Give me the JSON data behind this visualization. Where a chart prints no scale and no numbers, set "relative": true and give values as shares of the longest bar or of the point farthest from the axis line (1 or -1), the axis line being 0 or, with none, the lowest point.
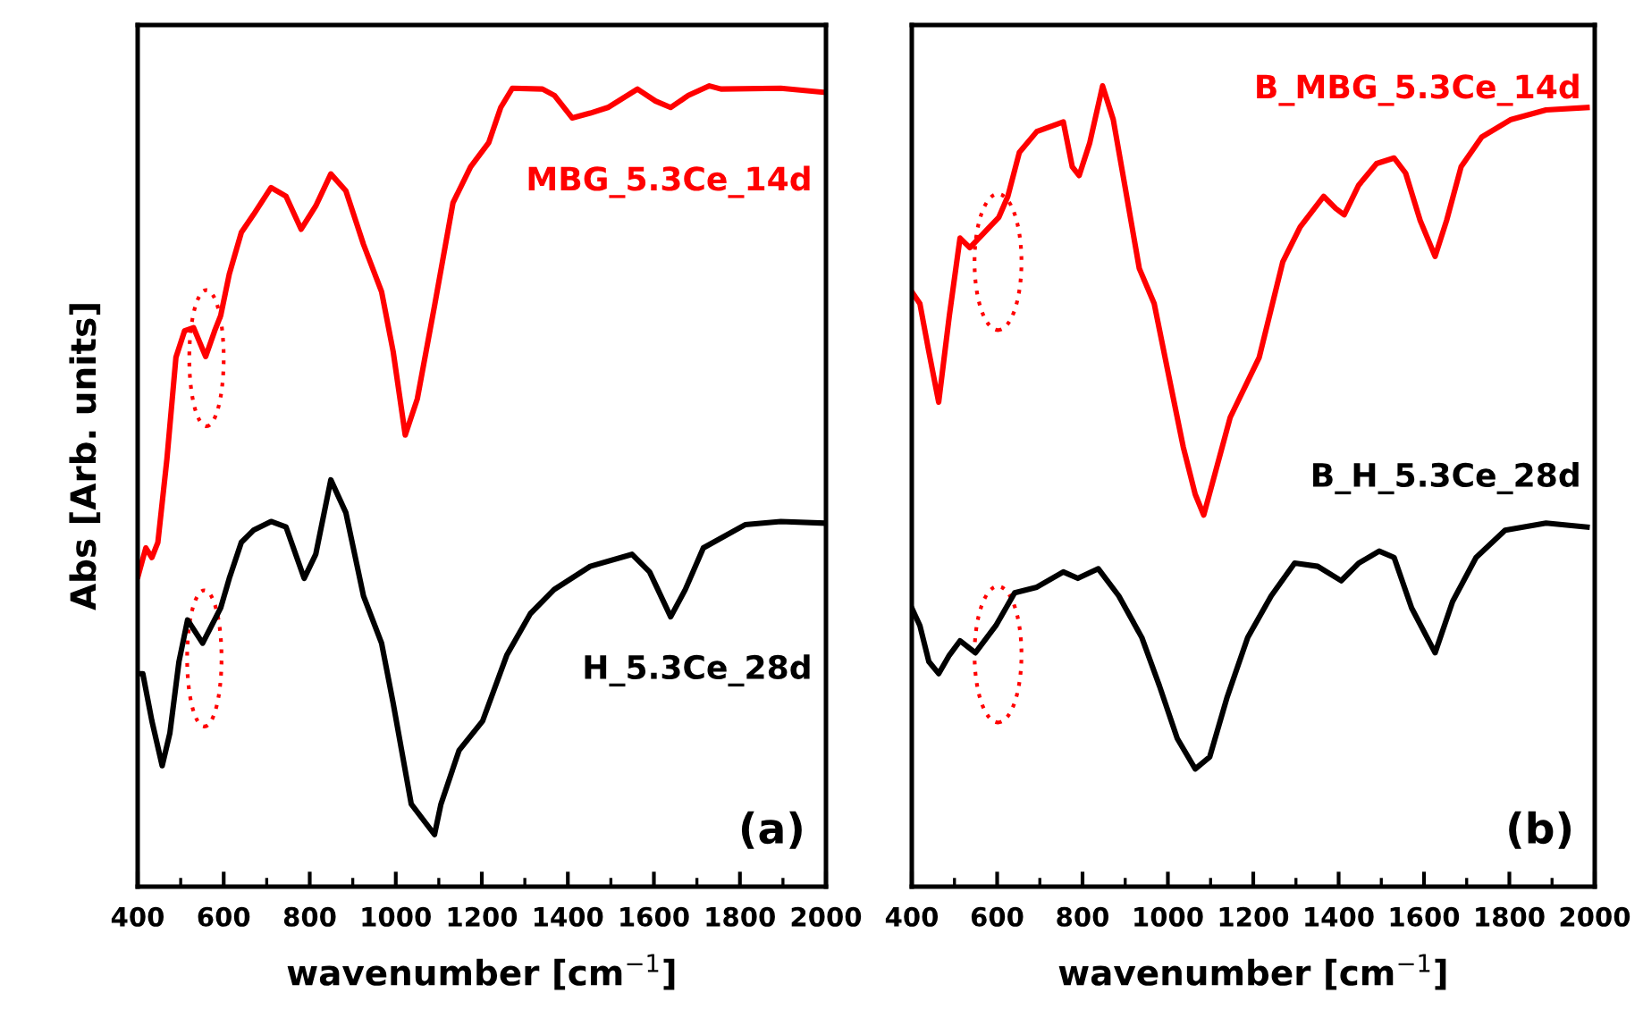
{
  "chart_data": [
    {
      "type": "line",
      "relative": true,
      "ylabel": "Abs [Arb. units]",
      "xlabel": "wavenumber [cm$^{−1}$]",
      "xlim": [
        400,
        2000
      ],
      "xticks": [
        400,
        600,
        800,
        1000,
        1200,
        1400,
        1600,
        1800,
        2000
      ],
      "tick_labels": "x",
      "grid": false,
      "legend": false,
      "marker": "none",
      "line_style": "solid",
      "annotations": [
        "(a)"
      ],
      "series": [
        {
          "name": "MBG_5.3Ce_14d",
          "color": "#ff0000",
          "x": [
            401,
            419,
            433,
            447,
            468,
            489,
            509,
            530,
            558,
            579,
            593,
            613,
            641,
            669,
            710,
            745,
            780,
            814,
            849,
            884,
            925,
            967,
            994,
            1022,
            1050,
            1091,
            1133,
            1174,
            1216,
            1244,
            1271,
            1341,
            1369,
            1410,
            1452,
            1493,
            1562,
            1604,
            1639,
            1680,
            1729,
            1756,
            1895,
            1995
          ],
          "values": [
            0.388,
            0.423,
            0.411,
            0.43,
            0.534,
            0.661,
            0.694,
            0.698,
            0.662,
            0.694,
            0.713,
            0.765,
            0.817,
            0.839,
            0.873,
            0.862,
            0.821,
            0.85,
            0.89,
            0.869,
            0.802,
            0.743,
            0.668,
            0.564,
            0.609,
            0.728,
            0.854,
            0.899,
            0.929,
            0.973,
            0.997,
            0.996,
            0.988,
            0.96,
            0.966,
            0.973,
            0.996,
            0.981,
            0.973,
            0.988,
            1.0,
            0.996,
            0.997,
            0.992
          ]
        },
        {
          "name": "H_5.3Ce_28d",
          "color": "#000000",
          "x": [
            401,
            412,
            433,
            457,
            475,
            496,
            516,
            551,
            593,
            613,
            641,
            669,
            710,
            745,
            787,
            814,
            849,
            884,
            925,
            967,
            994,
            1036,
            1090,
            1105,
            1147,
            1202,
            1258,
            1313,
            1368,
            1452,
            1549,
            1590,
            1639,
            1673,
            1715,
            1812,
            1895,
            1995
          ],
          "values": [
            0.266,
            0.266,
            0.207,
            0.151,
            0.192,
            0.281,
            0.333,
            0.304,
            0.348,
            0.385,
            0.43,
            0.445,
            0.456,
            0.449,
            0.385,
            0.415,
            0.508,
            0.467,
            0.363,
            0.304,
            0.229,
            0.103,
            0.065,
            0.103,
            0.17,
            0.207,
            0.289,
            0.341,
            0.371,
            0.4,
            0.415,
            0.393,
            0.337,
            0.371,
            0.423,
            0.452,
            0.456,
            0.454
          ]
        }
      ]
    },
    {
      "type": "line",
      "relative": true,
      "xlabel": "wavenumber [cm$^{−1}$]",
      "xlim": [
        400,
        2000
      ],
      "xticks": [
        400,
        600,
        800,
        1000,
        1200,
        1400,
        1600,
        1800,
        2000
      ],
      "tick_labels": "x",
      "grid": false,
      "legend": false,
      "marker": "none",
      "line_style": "solid",
      "annotations": [
        "(b)"
      ],
      "series": [
        {
          "name": "B_MBG_5.3Ce_14d",
          "color": "#ff0000",
          "x": [
            400,
            419,
            440,
            463,
            488,
            513,
            536,
            570,
            604,
            625,
            652,
            693,
            755,
            776,
            792,
            817,
            847,
            872,
            899,
            933,
            968,
            1002,
            1036,
            1064,
            1084,
            1112,
            1146,
            1214,
            1269,
            1310,
            1365,
            1393,
            1413,
            1447,
            1489,
            1530,
            1557,
            1591,
            1626,
            1653,
            1687,
            1735,
            1804,
            1886,
            1982
          ],
          "values": [
            0.743,
            0.728,
            0.668,
            0.605,
            0.713,
            0.81,
            0.798,
            0.817,
            0.836,
            0.862,
            0.917,
            0.943,
            0.955,
            0.899,
            0.888,
            0.929,
            1.0,
            0.958,
            0.876,
            0.772,
            0.728,
            0.638,
            0.549,
            0.49,
            0.464,
            0.519,
            0.586,
            0.661,
            0.78,
            0.824,
            0.862,
            0.847,
            0.839,
            0.876,
            0.903,
            0.91,
            0.891,
            0.832,
            0.787,
            0.832,
            0.899,
            0.936,
            0.958,
            0.97,
            0.973
          ]
        },
        {
          "name": "B_H_5.3Ce_28d",
          "color": "#000000",
          "x": [
            400,
            419,
            440,
            463,
            488,
            513,
            549,
            597,
            641,
            693,
            755,
            789,
            837,
            885,
            939,
            980,
            1022,
            1064,
            1098,
            1139,
            1187,
            1242,
            1297,
            1351,
            1406,
            1447,
            1495,
            1530,
            1571,
            1626,
            1667,
            1722,
            1790,
            1886,
            1982
          ],
          "values": [
            0.348,
            0.326,
            0.281,
            0.266,
            0.289,
            0.307,
            0.292,
            0.326,
            0.367,
            0.374,
            0.393,
            0.385,
            0.397,
            0.363,
            0.311,
            0.251,
            0.185,
            0.147,
            0.162,
            0.237,
            0.311,
            0.363,
            0.404,
            0.4,
            0.382,
            0.404,
            0.419,
            0.411,
            0.348,
            0.292,
            0.356,
            0.411,
            0.445,
            0.454,
            0.449
          ]
        }
      ]
    }
  ]
}
